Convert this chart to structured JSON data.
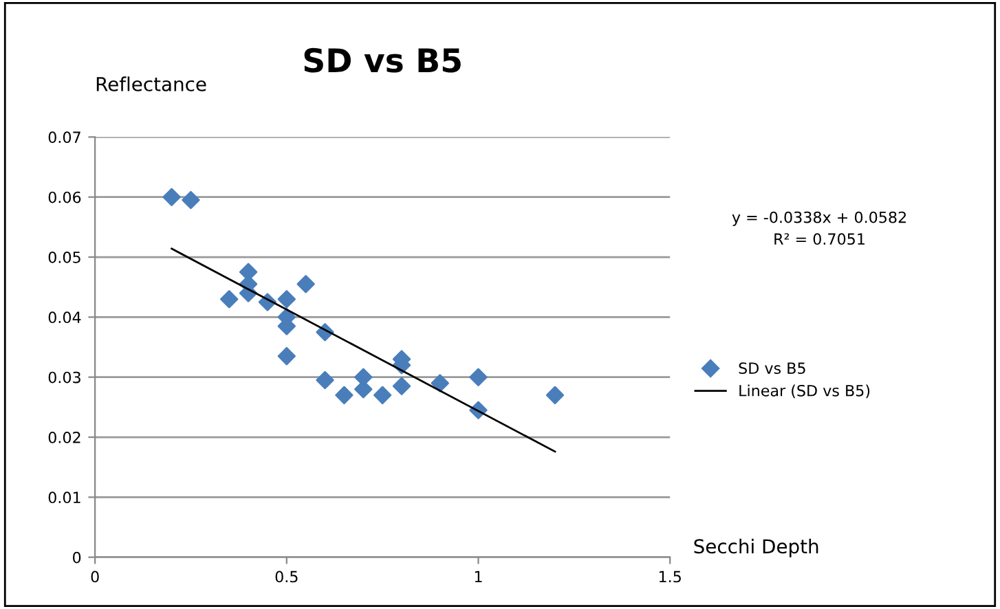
{
  "chart_data": {
    "type": "scatter",
    "title": "SD vs B5",
    "xlabel": "Secchi Depth",
    "ylabel": "Reflectance",
    "annotations": [
      "y = -0.0338x + 0.0582\nR² = 0.7051"
    ],
    "series": [
      {
        "name": "SD vs B5",
        "color": "#4a7ebb",
        "marker": "diamond",
        "x": [
          0.2,
          0.25,
          0.35,
          0.4,
          0.4,
          0.4,
          0.45,
          0.5,
          0.5,
          0.5,
          0.5,
          0.55,
          0.6,
          0.6,
          0.65,
          0.7,
          0.7,
          0.75,
          0.8,
          0.8,
          0.8,
          0.9,
          1.0,
          1.0,
          1.2
        ],
        "values": [
          0.06,
          0.0595,
          0.043,
          0.0475,
          0.0455,
          0.044,
          0.0425,
          0.043,
          0.04,
          0.0385,
          0.0335,
          0.0455,
          0.0375,
          0.0295,
          0.027,
          0.03,
          0.028,
          0.027,
          0.033,
          0.032,
          0.0285,
          0.029,
          0.03,
          0.0245,
          0.027
        ]
      },
      {
        "name": "Linear (SD vs B5)",
        "type": "line",
        "color": "#000000",
        "marker": "none",
        "x": [
          0.2,
          1.2
        ],
        "values": [
          0.0514,
          0.0176
        ]
      }
    ],
    "xlim": [
      0,
      1.5
    ],
    "xticks": [
      0,
      0.5,
      1,
      1.5
    ],
    "ylim": [
      0,
      0.07
    ],
    "yticks": [
      0,
      0.01,
      0.02,
      0.03,
      0.04,
      0.05,
      0.06,
      0.07
    ],
    "grid": "y",
    "legend": "right"
  }
}
